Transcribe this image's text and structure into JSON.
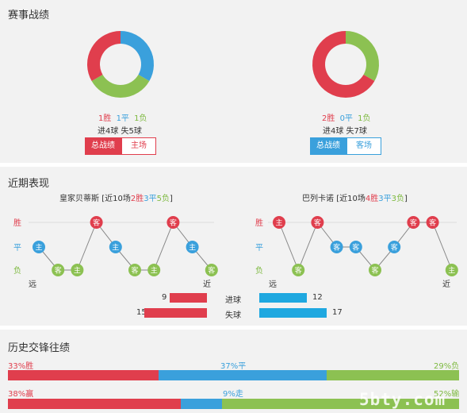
{
  "record": {
    "title": "赛事战绩",
    "home": {
      "donut": [
        {
          "value": 1,
          "color": "#e03e4d"
        },
        {
          "value": 1,
          "color": "#8cc152"
        },
        {
          "value": 1,
          "color": "#3aa0dc"
        }
      ],
      "wins": "1胜",
      "draws": "1平",
      "losses": "1负",
      "goals": "进4球 失5球",
      "tab_total": "总战绩",
      "tab_venue": "主场"
    },
    "away": {
      "donut": [
        {
          "value": 2,
          "color": "#e03e4d"
        },
        {
          "value": 0,
          "color": "#3aa0dc"
        },
        {
          "value": 1,
          "color": "#8cc152"
        }
      ],
      "wins": "2胜",
      "draws": "0平",
      "losses": "1负",
      "goals": "进4球 失7球",
      "tab_total": "总战绩",
      "tab_venue": "客场"
    }
  },
  "recent": {
    "title": "近期表现",
    "row_labels": {
      "win": "胜",
      "draw": "平",
      "loss": "负"
    },
    "far": "远",
    "near": "近",
    "home": {
      "team": "皇家贝蒂斯",
      "summary_prefix": "[近10场",
      "wins": "2胜",
      "draws": "3平",
      "losses": "5负",
      "summary_suffix": "]",
      "games": [
        {
          "result": "draw",
          "venue": "主"
        },
        {
          "result": "loss",
          "venue": "客"
        },
        {
          "result": "loss",
          "venue": "主"
        },
        {
          "result": "win",
          "venue": "客"
        },
        {
          "result": "draw",
          "venue": "主"
        },
        {
          "result": "loss",
          "venue": "客"
        },
        {
          "result": "loss",
          "venue": "主"
        },
        {
          "result": "win",
          "venue": "客"
        },
        {
          "result": "draw",
          "venue": "主"
        },
        {
          "result": "loss",
          "venue": "客"
        }
      ]
    },
    "away": {
      "team": "巴列卡诺",
      "summary_prefix": "[近10场",
      "wins": "4胜",
      "draws": "3平",
      "losses": "3负",
      "summary_suffix": "]",
      "games": [
        {
          "result": "win",
          "venue": "主"
        },
        {
          "result": "loss",
          "venue": "客"
        },
        {
          "result": "win",
          "venue": "客"
        },
        {
          "result": "draw",
          "venue": "客"
        },
        {
          "result": "draw",
          "venue": "客"
        },
        {
          "result": "loss",
          "venue": "客"
        },
        {
          "result": "draw",
          "venue": "客"
        },
        {
          "result": "win",
          "venue": "客"
        },
        {
          "result": "win",
          "venue": "客"
        },
        {
          "result": "loss",
          "venue": "主"
        }
      ]
    },
    "goals_scored_label": "进球",
    "goals_conceded_label": "失球",
    "home_scored": 9,
    "home_conceded": 15,
    "away_scored": 12,
    "away_conceded": 17
  },
  "h2h": {
    "title": "历史交锋往绩",
    "row1": {
      "left": "33%胜",
      "mid": "37%平",
      "right": "29%负",
      "p": [
        33,
        37,
        29
      ]
    },
    "row2": {
      "left": "38%赢",
      "mid": "9%走",
      "right": "52%输",
      "p": [
        38,
        9,
        52
      ]
    },
    "watermark": "5bty.com"
  },
  "colors": {
    "red": "#e03e4d",
    "blue": "#3aa0dc",
    "green": "#8cc152"
  }
}
